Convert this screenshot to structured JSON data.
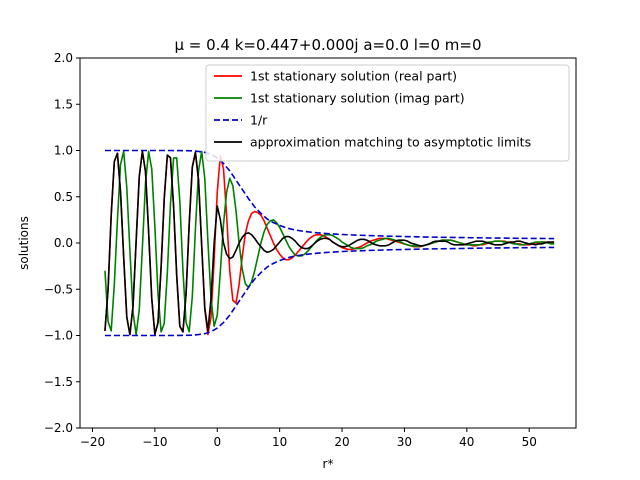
{
  "chart_data": {
    "type": "line",
    "title": "μ = 0.4 k=0.447+0.000j a=0.0 l=0 m=0",
    "xlabel": "r*",
    "ylabel": "solutions",
    "xlim": [
      -22,
      57.5
    ],
    "ylim": [
      -2.0,
      2.0
    ],
    "xticks": [
      -20,
      -10,
      0,
      10,
      20,
      30,
      40,
      50
    ],
    "yticks": [
      -2.0,
      -1.5,
      -1.0,
      -0.5,
      0.0,
      0.5,
      1.0,
      1.5,
      2.0
    ],
    "xtick_labels": [
      "−20",
      "−10",
      "0",
      "10",
      "20",
      "30",
      "40",
      "50"
    ],
    "ytick_labels": [
      "−2.0",
      "−1.5",
      "−1.0",
      "−0.5",
      "0.0",
      "0.5",
      "1.0",
      "1.5",
      "2.0"
    ],
    "grid": false,
    "legend_position": "top-right",
    "series": [
      {
        "name": "1st stationary solution (real part)",
        "color": "#ff0000",
        "style": "solid",
        "x": [
          -18,
          -17.5,
          -17,
          -16.5,
          -16,
          -15.5,
          -15,
          -14.5,
          -14,
          -13.5,
          -13,
          -12.5,
          -12,
          -11.5,
          -11,
          -10.5,
          -10,
          -9.5,
          -9,
          -8.5,
          -8,
          -7.5,
          -7,
          -6.5,
          -6,
          -5.5,
          -5,
          -4.5,
          -4,
          -3.5,
          -3,
          -2.5,
          -2,
          -1.5,
          -1,
          -0.5,
          0,
          0.5,
          1,
          1.5,
          2,
          2.5,
          3,
          3.5,
          4,
          4.5,
          5,
          5.5,
          6,
          6.5,
          7,
          7.5,
          8,
          8.5,
          9,
          9.5,
          10,
          10.5,
          11,
          11.5,
          12,
          12.5,
          13,
          13.5,
          14,
          14.5,
          15,
          15.5,
          16,
          16.5,
          17,
          17.5,
          18,
          18.5,
          19,
          19.5,
          20,
          20.5,
          21,
          21.5,
          22,
          22.5,
          23,
          23.5,
          24,
          24.5,
          25,
          25.5,
          26,
          26.5,
          27,
          27.5,
          28,
          28.5,
          29,
          29.5,
          30,
          30.5,
          31,
          31.5,
          32,
          32.5,
          33,
          33.5,
          34,
          34.5,
          35,
          35.5,
          36,
          36.5,
          37,
          37.5,
          38,
          38.5,
          39,
          39.5,
          40,
          40.5,
          41,
          41.5,
          42,
          42.5,
          43,
          43.5,
          44,
          44.5,
          45,
          45.5,
          46,
          46.5,
          47,
          47.5,
          48,
          48.5,
          49,
          49.5,
          50,
          50.5,
          51,
          51.5,
          52,
          52.5,
          53,
          53.5,
          54
        ],
        "y": [
          -0.95,
          -0.5,
          0.3,
          0.88,
          0.97,
          0.55,
          -0.15,
          -0.8,
          -0.99,
          -0.68,
          0.02,
          0.72,
          0.99,
          0.77,
          0.12,
          -0.6,
          -0.99,
          -0.86,
          -0.26,
          0.48,
          0.95,
          0.92,
          0.4,
          -0.35,
          -0.9,
          -0.96,
          -0.55,
          0.2,
          0.82,
          0.98,
          0.68,
          -0.02,
          -0.72,
          -0.99,
          -0.8,
          -0.18,
          0.55,
          0.95,
          0.8,
          0.3,
          -0.3,
          -0.62,
          -0.65,
          -0.45,
          -0.15,
          0.1,
          0.24,
          0.32,
          0.34,
          0.33,
          0.3,
          0.24,
          0.16,
          0.08,
          0.0,
          -0.07,
          -0.12,
          -0.16,
          -0.18,
          -0.18,
          -0.16,
          -0.13,
          -0.09,
          -0.05,
          -0.01,
          0.03,
          0.06,
          0.08,
          0.09,
          0.09,
          0.08,
          0.06,
          0.04,
          0.01,
          -0.01,
          -0.03,
          -0.05,
          -0.06,
          -0.07,
          -0.07,
          -0.06,
          -0.05,
          -0.04,
          -0.02,
          0.0,
          0.02,
          0.03,
          0.04,
          0.05,
          0.05,
          0.05,
          0.04,
          0.03,
          0.02,
          0.01,
          0.0,
          -0.01,
          -0.02,
          -0.03,
          -0.04,
          -0.04,
          -0.04,
          -0.03,
          -0.02,
          -0.01,
          0.0,
          0.01,
          0.02,
          0.03,
          0.03,
          0.03,
          0.03,
          0.02,
          0.01,
          0.0,
          -0.01,
          -0.02,
          -0.02,
          -0.03,
          -0.03,
          -0.02,
          -0.02,
          -0.01,
          0.0,
          0.01,
          0.02,
          0.02,
          0.02,
          0.02,
          0.01,
          0.01,
          0.0,
          -0.01,
          -0.01,
          -0.02,
          -0.02,
          -0.02,
          -0.01,
          0.0,
          0.0,
          0.01,
          0.01,
          0.01,
          0.0,
          -0.01
        ]
      },
      {
        "name": "1st stationary solution (imag part)",
        "color": "#008000",
        "style": "solid",
        "x": [
          -18,
          -17.5,
          -17,
          -16.5,
          -16,
          -15.5,
          -15,
          -14.5,
          -14,
          -13.5,
          -13,
          -12.5,
          -12,
          -11.5,
          -11,
          -10.5,
          -10,
          -9.5,
          -9,
          -8.5,
          -8,
          -7.5,
          -7,
          -6.5,
          -6,
          -5.5,
          -5,
          -4.5,
          -4,
          -3.5,
          -3,
          -2.5,
          -2,
          -1.5,
          -1,
          -0.5,
          0,
          0.5,
          1,
          1.5,
          2,
          2.5,
          3,
          3.5,
          4,
          4.5,
          5,
          5.5,
          6,
          6.5,
          7,
          7.5,
          8,
          8.5,
          9,
          9.5,
          10,
          10.5,
          11,
          11.5,
          12,
          12.5,
          13,
          13.5,
          14,
          14.5,
          15,
          15.5,
          16,
          16.5,
          17,
          17.5,
          18,
          18.5,
          19,
          19.5,
          20,
          20.5,
          21,
          21.5,
          22,
          22.5,
          23,
          23.5,
          24,
          24.5,
          25,
          25.5,
          26,
          26.5,
          27,
          27.5,
          28,
          28.5,
          29,
          29.5,
          30,
          30.5,
          31,
          31.5,
          32,
          32.5,
          33,
          33.5,
          34,
          34.5,
          35,
          35.5,
          36,
          36.5,
          37,
          37.5,
          38,
          38.5,
          39,
          39.5,
          40,
          40.5,
          41,
          41.5,
          42,
          42.5,
          43,
          43.5,
          44,
          44.5,
          45,
          45.5,
          46,
          46.5,
          47,
          47.5,
          48,
          48.5,
          49,
          49.5,
          50,
          50.5,
          51,
          51.5,
          52,
          52.5,
          53,
          53.5,
          54
        ],
        "y": [
          -0.3,
          -0.85,
          -0.95,
          -0.45,
          0.25,
          0.85,
          0.99,
          0.6,
          -0.08,
          -0.75,
          -0.99,
          -0.72,
          -0.05,
          0.65,
          0.99,
          0.8,
          0.18,
          -0.55,
          -0.96,
          -0.87,
          -0.32,
          0.42,
          0.92,
          0.92,
          0.45,
          -0.3,
          -0.86,
          -0.96,
          -0.58,
          0.15,
          0.78,
          0.99,
          0.7,
          0.02,
          -0.6,
          -0.9,
          -0.78,
          -0.3,
          0.2,
          0.55,
          0.7,
          0.62,
          0.35,
          0.0,
          -0.28,
          -0.44,
          -0.48,
          -0.42,
          -0.3,
          -0.15,
          0.0,
          0.12,
          0.2,
          0.24,
          0.25,
          0.22,
          0.17,
          0.1,
          0.03,
          -0.04,
          -0.09,
          -0.13,
          -0.14,
          -0.14,
          -0.12,
          -0.09,
          -0.05,
          -0.01,
          0.03,
          0.06,
          0.08,
          0.09,
          0.09,
          0.08,
          0.06,
          0.04,
          0.01,
          -0.01,
          -0.03,
          -0.05,
          -0.06,
          -0.06,
          -0.06,
          -0.05,
          -0.03,
          -0.02,
          0.0,
          0.02,
          0.03,
          0.04,
          0.05,
          0.05,
          0.04,
          0.03,
          0.02,
          0.01,
          -0.01,
          -0.02,
          -0.03,
          -0.03,
          -0.04,
          -0.03,
          -0.03,
          -0.02,
          -0.01,
          0.0,
          0.01,
          0.02,
          0.03,
          0.03,
          0.03,
          0.03,
          0.02,
          0.01,
          0.0,
          -0.01,
          -0.02,
          -0.02,
          -0.02,
          -0.02,
          -0.02,
          -0.01,
          0.0,
          0.01,
          0.01,
          0.02,
          0.02,
          0.02,
          0.01,
          0.01,
          0.0,
          -0.01,
          -0.01,
          -0.02,
          -0.02,
          -0.01,
          -0.01,
          0.0,
          0.01,
          0.01,
          0.01,
          0.01,
          0.0,
          -0.01,
          -0.01
        ]
      },
      {
        "name": "1/r",
        "color": "#0000cc",
        "style": "dashed",
        "x": [
          -18,
          -14,
          -10,
          -8,
          -6,
          -4,
          -3,
          -2,
          -1,
          0,
          1,
          2,
          3,
          4,
          5,
          6,
          7,
          8,
          9,
          10,
          11,
          12,
          13,
          14,
          15,
          16,
          18,
          20,
          22,
          24,
          26,
          28,
          30,
          32,
          34,
          36,
          38,
          40,
          42,
          44,
          46,
          48,
          50,
          52,
          54
        ],
        "y": [
          1.0,
          1.0,
          1.0,
          1.0,
          0.999,
          0.996,
          0.99,
          0.98,
          0.96,
          0.92,
          0.86,
          0.78,
          0.68,
          0.58,
          0.48,
          0.39,
          0.32,
          0.26,
          0.22,
          0.19,
          0.165,
          0.148,
          0.135,
          0.125,
          0.117,
          0.11,
          0.1,
          0.092,
          0.086,
          0.081,
          0.077,
          0.073,
          0.07,
          0.067,
          0.064,
          0.062,
          0.06,
          0.058,
          0.056,
          0.054,
          0.053,
          0.051,
          0.05,
          0.049,
          0.048
        ]
      },
      {
        "name": "approximation matching to asymptotic limits",
        "color": "#000000",
        "style": "solid",
        "x": [
          -18,
          -17.5,
          -17,
          -16.5,
          -16,
          -15.5,
          -15,
          -14.5,
          -14,
          -13.5,
          -13,
          -12.5,
          -12,
          -11.5,
          -11,
          -10.5,
          -10,
          -9.5,
          -9,
          -8.5,
          -8,
          -7.5,
          -7,
          -6.5,
          -6,
          -5.5,
          -5,
          -4.5,
          -4,
          -3.5,
          -3,
          -2.5,
          -2,
          -1.5,
          -1,
          -0.5,
          0,
          0.5,
          1,
          1.5,
          2,
          2.5,
          3,
          3.5,
          4,
          4.5,
          5,
          5.5,
          6,
          6.5,
          7,
          7.5,
          8,
          8.5,
          9,
          9.5,
          10,
          10.5,
          11,
          11.5,
          12,
          12.5,
          13,
          13.5,
          14,
          14.5,
          15,
          15.5,
          16,
          16.5,
          17,
          17.5,
          18,
          18.5,
          19,
          19.5,
          20,
          20.5,
          21,
          21.5,
          22,
          22.5,
          23,
          23.5,
          24,
          24.5,
          25,
          25.5,
          26,
          26.5,
          27,
          27.5,
          28,
          28.5,
          29,
          29.5,
          30,
          30.5,
          31,
          31.5,
          32,
          32.5,
          33,
          33.5,
          34,
          34.5,
          35,
          35.5,
          36,
          36.5,
          37,
          37.5,
          38,
          38.5,
          39,
          39.5,
          40,
          40.5,
          41,
          41.5,
          42,
          42.5,
          43,
          43.5,
          44,
          44.5,
          45,
          45.5,
          46,
          46.5,
          47,
          47.5,
          48,
          48.5,
          49,
          49.5,
          50,
          50.5,
          51,
          51.5,
          52,
          52.5,
          53,
          53.5,
          54
        ],
        "y": [
          -0.95,
          -0.5,
          0.3,
          0.88,
          0.97,
          0.55,
          -0.15,
          -0.8,
          -0.99,
          -0.68,
          0.02,
          0.72,
          0.99,
          0.77,
          0.12,
          -0.6,
          -0.99,
          -0.86,
          -0.26,
          0.48,
          0.95,
          0.92,
          0.4,
          -0.35,
          -0.9,
          -0.96,
          -0.55,
          0.2,
          0.82,
          0.98,
          0.68,
          -0.02,
          -0.7,
          -0.95,
          -0.6,
          0.0,
          0.4,
          0.25,
          0.0,
          -0.12,
          -0.17,
          -0.15,
          -0.08,
          0.0,
          0.06,
          0.1,
          0.11,
          0.09,
          0.05,
          0.0,
          -0.04,
          -0.08,
          -0.1,
          -0.09,
          -0.07,
          -0.03,
          0.01,
          0.05,
          0.07,
          0.07,
          0.05,
          0.02,
          -0.02,
          -0.05,
          -0.06,
          -0.06,
          -0.04,
          -0.01,
          0.02,
          0.04,
          0.05,
          0.05,
          0.04,
          0.01,
          -0.01,
          -0.03,
          -0.04,
          -0.04,
          -0.03,
          -0.01,
          0.01,
          0.03,
          0.04,
          0.04,
          0.03,
          0.01,
          -0.01,
          -0.02,
          -0.03,
          -0.03,
          -0.03,
          -0.02,
          0.0,
          0.02,
          0.03,
          0.03,
          0.03,
          0.02,
          0.0,
          -0.01,
          -0.02,
          -0.03,
          -0.03,
          -0.02,
          -0.01,
          0.01,
          0.02,
          0.02,
          0.02,
          0.02,
          0.01,
          -0.01,
          -0.02,
          -0.02,
          -0.02,
          -0.02,
          -0.01,
          0.0,
          0.01,
          0.02,
          0.02,
          0.02,
          0.01,
          0.0,
          -0.01,
          -0.02,
          -0.02,
          -0.02,
          -0.01,
          0.0,
          0.01,
          0.01,
          0.02,
          0.02,
          0.01,
          0.0,
          -0.01,
          -0.01,
          -0.02,
          -0.01,
          -0.01,
          0.0,
          0.01,
          0.01,
          0.01
        ]
      },
      {
        "name": "",
        "color": "#0000cc",
        "style": "dashed",
        "x": [
          -18,
          -14,
          -10,
          -8,
          -6,
          -4,
          -3,
          -2,
          -1,
          0,
          1,
          2,
          3,
          4,
          5,
          6,
          7,
          8,
          9,
          10,
          11,
          12,
          13,
          14,
          15,
          16,
          18,
          20,
          22,
          24,
          26,
          28,
          30,
          32,
          34,
          36,
          38,
          40,
          42,
          44,
          46,
          48,
          50,
          52,
          54
        ],
        "y": [
          -1.0,
          -1.0,
          -1.0,
          -1.0,
          -0.999,
          -0.996,
          -0.99,
          -0.98,
          -0.96,
          -0.92,
          -0.86,
          -0.78,
          -0.68,
          -0.58,
          -0.48,
          -0.39,
          -0.32,
          -0.26,
          -0.22,
          -0.19,
          -0.165,
          -0.148,
          -0.135,
          -0.125,
          -0.117,
          -0.11,
          -0.1,
          -0.092,
          -0.086,
          -0.081,
          -0.077,
          -0.073,
          -0.07,
          -0.067,
          -0.064,
          -0.062,
          -0.06,
          -0.058,
          -0.056,
          -0.054,
          -0.053,
          -0.051,
          -0.05,
          -0.049,
          -0.048
        ]
      }
    ]
  }
}
